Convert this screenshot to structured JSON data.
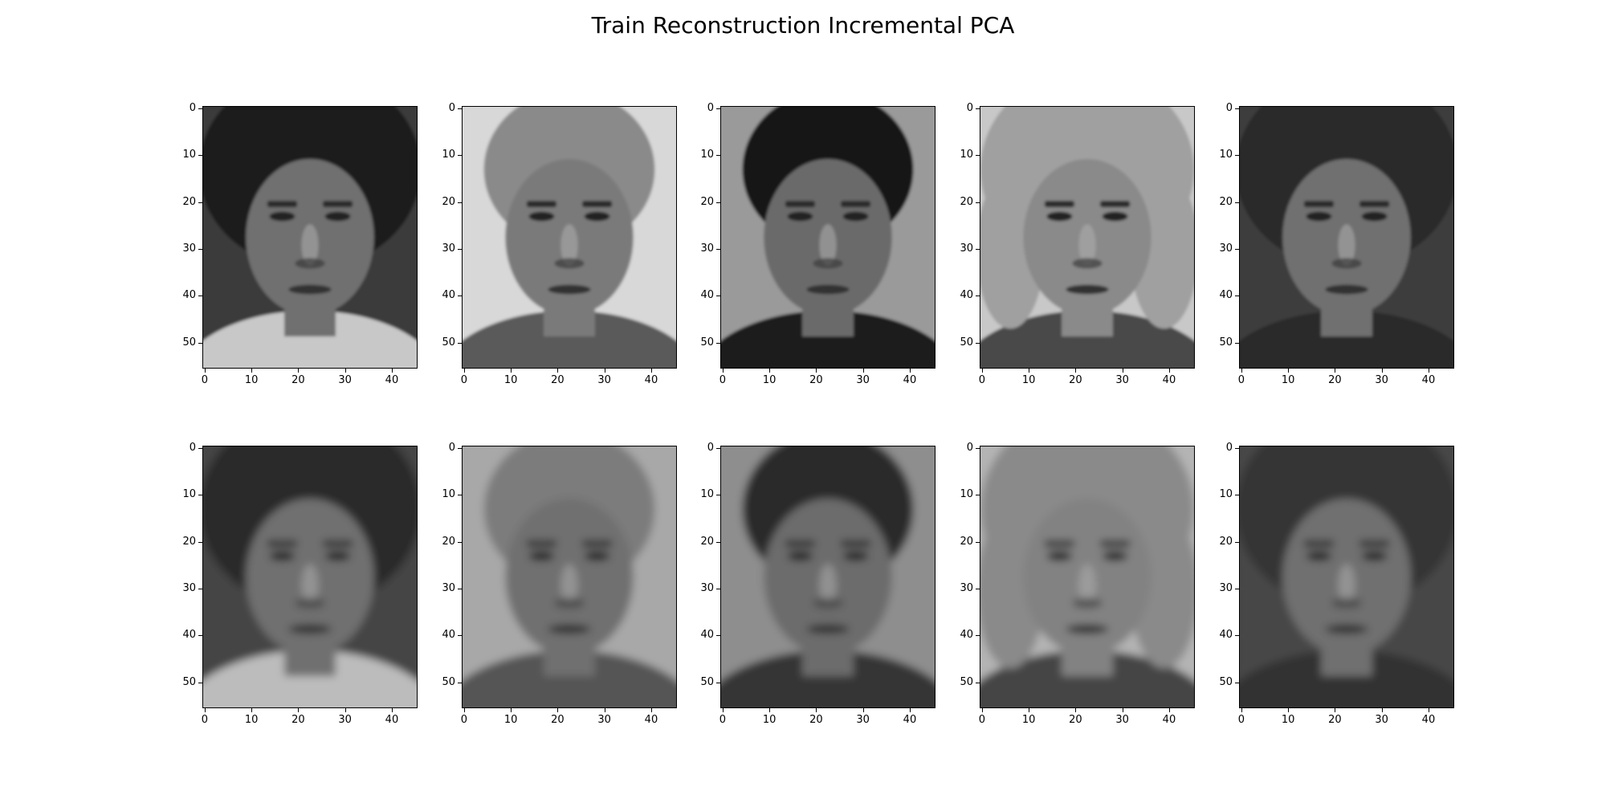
{
  "figure": {
    "title": "Train Reconstruction Incremental PCA",
    "rows": 2,
    "cols": 5
  },
  "axes": {
    "y_ticks": [
      "0",
      "10",
      "20",
      "30",
      "40",
      "50"
    ],
    "x_ticks": [
      "0",
      "10",
      "20",
      "30",
      "40"
    ],
    "y_tick_values": [
      0,
      10,
      20,
      30,
      40,
      50
    ],
    "x_tick_values": [
      0,
      10,
      20,
      30,
      40
    ],
    "image_width": 46,
    "image_height": 56
  },
  "panels": [
    {
      "row": 0,
      "col": 0,
      "kind": "original",
      "hair": "#1e1e1e",
      "skin": "#6f6f6f",
      "bg": "#3a3a3a",
      "shirt": "#c8c8c8",
      "hair_volume": "large"
    },
    {
      "row": 0,
      "col": 1,
      "kind": "original",
      "hair": "#8a8a8a",
      "skin": "#7a7a7a",
      "bg": "#d8d8d8",
      "shirt": "#5a5a5a",
      "hair_volume": "short"
    },
    {
      "row": 0,
      "col": 2,
      "kind": "original",
      "hair": "#141414",
      "skin": "#6a6a6a",
      "bg": "#9a9a9a",
      "shirt": "#1a1a1a",
      "hair_volume": "short"
    },
    {
      "row": 0,
      "col": 3,
      "kind": "original",
      "hair": "#a0a0a0",
      "skin": "#8a8a8a",
      "bg": "#c8c8c8",
      "shirt": "#4a4a4a",
      "hair_volume": "curly"
    },
    {
      "row": 0,
      "col": 4,
      "kind": "original",
      "hair": "#2a2a2a",
      "skin": "#707070",
      "bg": "#3c3c3c",
      "shirt": "#2c2c2c",
      "hair_volume": "large"
    },
    {
      "row": 1,
      "col": 0,
      "kind": "reconstruction",
      "hair": "#2a2a2a",
      "skin": "#6f6f6f",
      "bg": "#454545",
      "shirt": "#bcbcbc",
      "hair_volume": "large"
    },
    {
      "row": 1,
      "col": 1,
      "kind": "reconstruction",
      "hair": "#7c7c7c",
      "skin": "#707070",
      "bg": "#a8a8a8",
      "shirt": "#555555",
      "hair_volume": "short"
    },
    {
      "row": 1,
      "col": 2,
      "kind": "reconstruction",
      "hair": "#2a2a2a",
      "skin": "#6c6c6c",
      "bg": "#8e8e8e",
      "shirt": "#363636",
      "hair_volume": "short"
    },
    {
      "row": 1,
      "col": 3,
      "kind": "reconstruction",
      "hair": "#8a8a8a",
      "skin": "#828282",
      "bg": "#b4b4b4",
      "shirt": "#444444",
      "hair_volume": "curly"
    },
    {
      "row": 1,
      "col": 4,
      "kind": "reconstruction",
      "hair": "#343434",
      "skin": "#707070",
      "bg": "#464646",
      "shirt": "#333333",
      "hair_volume": "large"
    }
  ]
}
